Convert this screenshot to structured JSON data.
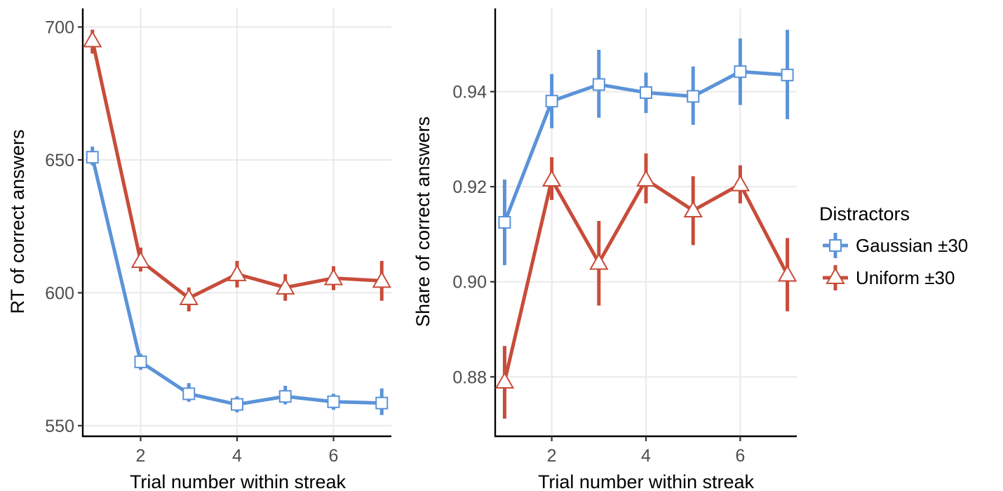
{
  "legend": {
    "title": "Distractors",
    "position": "right",
    "entries": [
      {
        "series": "Gaussian ±30",
        "color": "#5b93d8",
        "marker": "square"
      },
      {
        "series": "Uniform ±30",
        "color": "#c84c3a",
        "marker": "triangle"
      }
    ]
  },
  "chart_data": [
    {
      "type": "line",
      "xlabel": "Trial number within streak",
      "ylabel": "RT of correct answers",
      "xlim": [
        0.8,
        7.2
      ],
      "ylim": [
        546,
        707
      ],
      "xticks": [
        2,
        4,
        6
      ],
      "yticks": [
        550,
        600,
        650,
        700
      ],
      "grid": true,
      "x": [
        1,
        2,
        3,
        4,
        5,
        6,
        7
      ],
      "series": [
        {
          "name": "Gaussian ±30",
          "color": "#5b93d8",
          "marker": "square",
          "values": [
            651,
            574,
            562,
            558,
            561,
            559,
            558.5
          ],
          "lower": [
            648,
            571,
            559,
            555,
            558,
            556,
            554
          ],
          "upper": [
            655,
            577,
            566,
            561,
            565,
            562,
            564
          ]
        },
        {
          "name": "Uniform ±30",
          "color": "#c84c3a",
          "marker": "triangle",
          "values": [
            695,
            612,
            598,
            607,
            602,
            605.5,
            604.5
          ],
          "lower": [
            690,
            608,
            593,
            602,
            597,
            601,
            597
          ],
          "upper": [
            699,
            617,
            602,
            612,
            607,
            610,
            612
          ]
        }
      ]
    },
    {
      "type": "line",
      "xlabel": "Trial number within streak",
      "ylabel": "Share of correct answers",
      "xlim": [
        0.8,
        7.2
      ],
      "ylim": [
        0.8675,
        0.9575
      ],
      "xticks": [
        2,
        4,
        6
      ],
      "yticks": [
        0.88,
        0.9,
        0.92,
        0.94
      ],
      "ytick_labels": [
        "0.88",
        "0.90",
        "0.92",
        "0.94"
      ],
      "grid": true,
      "x": [
        1,
        2,
        3,
        4,
        5,
        6,
        7
      ],
      "series": [
        {
          "name": "Gaussian ±30",
          "color": "#5b93d8",
          "marker": "square",
          "values": [
            0.9125,
            0.938,
            0.9415,
            0.9398,
            0.939,
            0.9442,
            0.9435
          ],
          "lower": [
            0.9035,
            0.9323,
            0.9345,
            0.9355,
            0.933,
            0.9372,
            0.9342
          ],
          "upper": [
            0.9215,
            0.9437,
            0.9488,
            0.944,
            0.9453,
            0.9512,
            0.953
          ]
        },
        {
          "name": "Uniform ±30",
          "color": "#c84c3a",
          "marker": "triangle",
          "values": [
            0.879,
            0.9215,
            0.904,
            0.9215,
            0.915,
            0.9205,
            0.9015
          ],
          "lower": [
            0.8712,
            0.9172,
            0.895,
            0.9165,
            0.9077,
            0.9165,
            0.8938
          ],
          "upper": [
            0.8865,
            0.9262,
            0.9128,
            0.927,
            0.9222,
            0.9245,
            0.9092
          ]
        }
      ]
    }
  ]
}
